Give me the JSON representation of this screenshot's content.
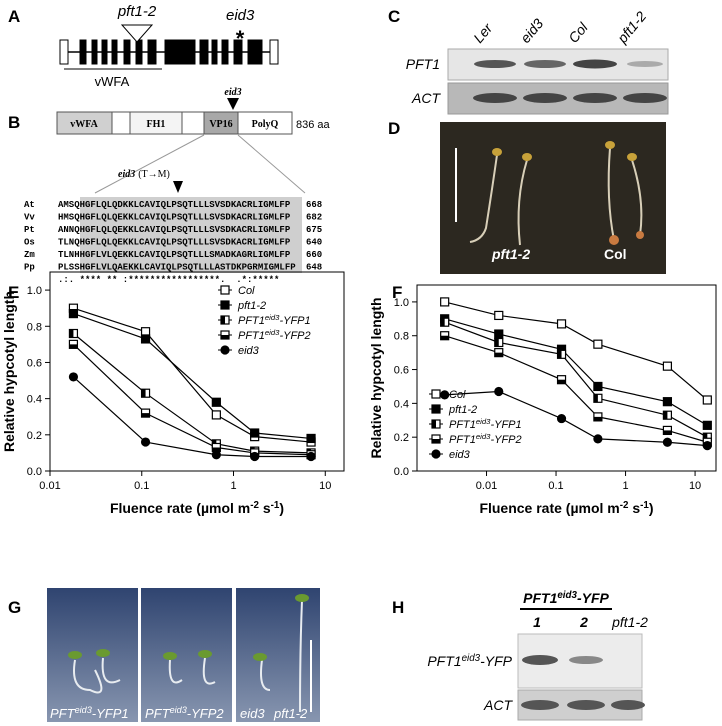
{
  "panel_labels": [
    "A",
    "B",
    "C",
    "D",
    "E",
    "F",
    "G",
    "H"
  ],
  "panel_a": {
    "mutant_label": "pft1-2",
    "point_label": "eid3",
    "point_mark": "*",
    "domain_label": "vWFA"
  },
  "panel_b": {
    "domains": [
      "vWFA",
      "FH1",
      "VP16",
      "PolyQ"
    ],
    "length": "836 aa",
    "site_label": "eid3",
    "mutation": {
      "allele": "eid3",
      "change": "(T→M)"
    },
    "alignment": [
      {
        "species": "At",
        "sequence": "AMSQHGFLQLQDKKLCAVIQLPSQTLLLSVSDKACRLIGMLFP",
        "position": 668
      },
      {
        "species": "Vv",
        "sequence": "HMSQHGFLQLQEKKLCAVIQLPSQTLLLSVSDKACRLIGMLFP",
        "position": 682
      },
      {
        "species": "Pt",
        "sequence": "ANNQHGFLQLQEKKLCAVIQLPSQTLLLSVSDKACRLIGMLFP",
        "position": 675
      },
      {
        "species": "Os",
        "sequence": "TLNQHGFLQLQEKKLCAVIQLPSQTLLLSVSDKACRLIGMLFP",
        "position": 640
      },
      {
        "species": "Zm",
        "sequence": "TLNHHGFLVLQEKKLCAVIQLPSQTLLLSMADKAGRLIGMLFP",
        "position": 660
      },
      {
        "species": "Pp",
        "sequence": "PLSSHGFLVLQAEKKLCAVIQLPSQTLLLASTDKPGRMIGMLFP",
        "position": 648
      }
    ],
    "consensus": ".:. **** ** :*****************.  .*:*****"
  },
  "panel_c": {
    "lanes": [
      "Ler",
      "eid3",
      "Col",
      "pft1-2"
    ],
    "rows": [
      "PFT1",
      "ACT"
    ]
  },
  "panel_d": {
    "labels": [
      "pft1-2",
      "Col"
    ]
  },
  "chart_data": [
    {
      "type": "line",
      "xscale": "log",
      "legend": "upper right",
      "xlabel": [
        "Fluence rate (µmol m",
        "-2",
        " s",
        "-1",
        ")"
      ],
      "ylabel": "Relative hypcotyl length",
      "xlim": [
        0.01,
        16
      ],
      "xticks": [
        0.01,
        0.1,
        1,
        10
      ],
      "ylim": [
        0,
        1.1
      ],
      "yticks": [
        {
          "value": 0,
          "label": "0.0"
        },
        0.2,
        0.4,
        0.6,
        0.8,
        {
          "value": 1,
          "label": "1.0"
        }
      ],
      "x": [
        0.018,
        0.11,
        0.65,
        1.7,
        7
      ],
      "series": [
        {
          "name": "Col",
          "color": "#000000",
          "marker": "square-open",
          "values": [
            0.9,
            0.77,
            0.31,
            0.19,
            0.16
          ]
        },
        {
          "name": "pft1-2",
          "color": "#000000",
          "marker": "square-filled",
          "values": [
            0.87,
            0.73,
            0.38,
            0.21,
            0.18
          ]
        },
        {
          "name": [
            "PFT1",
            "eid3",
            "-YFP1"
          ],
          "color": "#000000",
          "marker": "square-half-left",
          "values": [
            0.76,
            0.43,
            0.15,
            0.11,
            0.1
          ]
        },
        {
          "name": [
            "PFT1",
            "eid3",
            "-YFP2"
          ],
          "color": "#000000",
          "marker": "square-half-bottom",
          "values": [
            0.7,
            0.32,
            0.13,
            0.1,
            0.09
          ]
        },
        {
          "name": "eid3",
          "color": "#000000",
          "marker": "circle-filled",
          "values": [
            0.52,
            0.16,
            0.09,
            0.08,
            0.08
          ]
        }
      ]
    },
    {
      "type": "line",
      "xscale": "log",
      "legend": "lower left",
      "xlabel": [
        "Fluence rate (µmol m",
        "-2",
        " s",
        "-1",
        ")"
      ],
      "ylabel": "Relative hypcotyl length",
      "xlim": [
        0.001,
        20
      ],
      "xticks": [
        0.01,
        0.1,
        1,
        10
      ],
      "ylim": [
        0,
        1.1
      ],
      "yticks": [
        {
          "value": 0,
          "label": "0.0"
        },
        0.2,
        0.4,
        0.6,
        0.8,
        {
          "value": 1,
          "label": "1.0"
        }
      ],
      "x": [
        0.0025,
        0.015,
        0.12,
        0.4,
        4,
        15
      ],
      "series": [
        {
          "name": "Col",
          "color": "#000000",
          "marker": "square-open",
          "values": [
            1.0,
            0.92,
            0.87,
            0.75,
            0.62,
            0.42
          ]
        },
        {
          "name": "pft1-2",
          "color": "#000000",
          "marker": "square-filled",
          "values": [
            0.9,
            0.81,
            0.72,
            0.5,
            0.41,
            0.27
          ]
        },
        {
          "name": [
            "PFT1",
            "eid3",
            "-YFP1"
          ],
          "color": "#000000",
          "marker": "square-half-left",
          "values": [
            0.88,
            0.76,
            0.69,
            0.43,
            0.33,
            0.2
          ]
        },
        {
          "name": [
            "PFT1",
            "eid3",
            "-YFP2"
          ],
          "color": "#000000",
          "marker": "square-half-bottom",
          "values": [
            0.8,
            0.7,
            0.54,
            0.32,
            0.24,
            0.17
          ]
        },
        {
          "name": "eid3",
          "color": "#000000",
          "marker": "circle-filled",
          "values": [
            0.45,
            0.47,
            0.31,
            0.19,
            0.17,
            0.15
          ]
        }
      ]
    }
  ],
  "panel_g": {
    "labels": [
      [
        "PFT",
        "eid3",
        "-YFP1"
      ],
      [
        "PFT",
        "eid3",
        "-YFP2"
      ],
      "eid3",
      "pft1-2"
    ]
  },
  "panel_h": {
    "group": [
      "PFT1",
      "eid3",
      "-YFP"
    ],
    "lanes": [
      "1",
      "2",
      "pft1-2"
    ],
    "rows": [
      [
        "PFT1",
        "eid3",
        "-YFP"
      ],
      "ACT"
    ]
  }
}
